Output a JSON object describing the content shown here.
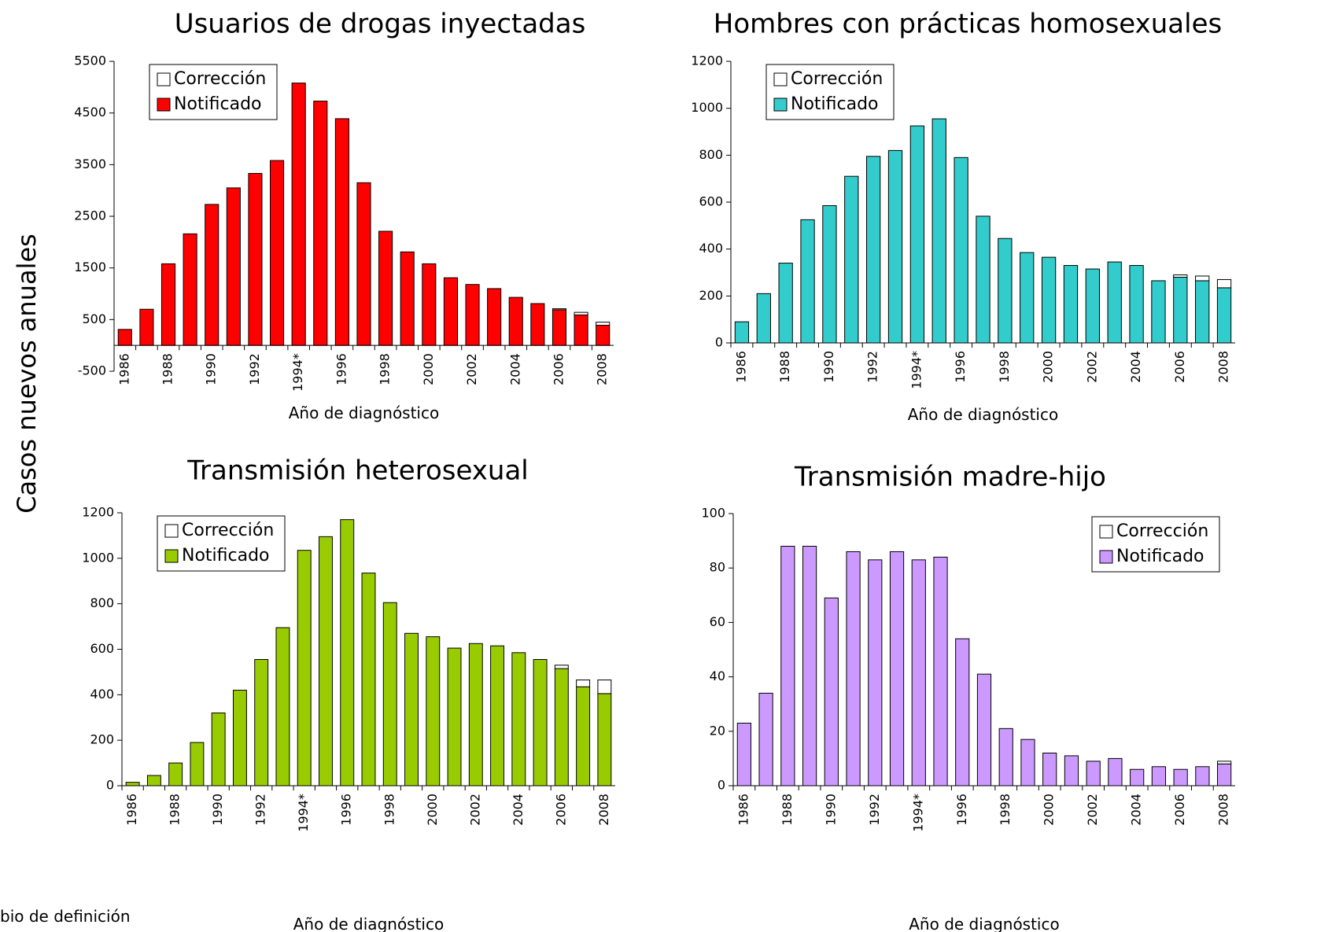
{
  "ylabel": "Casos nuevos anuales",
  "footnote": "bio de definición",
  "chart_data": [
    {
      "type": "bar",
      "title": "Usuarios de drogas inyectadas",
      "xlabel": "Año de diagnóstico",
      "stacked": true,
      "legend": "upper left",
      "categories": [
        "1986",
        null,
        "1988",
        null,
        "1990",
        null,
        "1992",
        null,
        "1994*",
        null,
        "1996",
        null,
        "1998",
        null,
        "2000",
        null,
        "2002",
        null,
        "2004",
        null,
        "2006",
        null,
        "2008"
      ],
      "series": [
        {
          "name": "Corrección",
          "color": "#ffffff",
          "values": [
            0,
            0,
            0,
            0,
            0,
            0,
            0,
            0,
            0,
            0,
            0,
            0,
            0,
            0,
            0,
            0,
            0,
            0,
            0,
            0,
            20,
            50,
            60
          ]
        },
        {
          "name": "Notificado",
          "color": "#ff0000",
          "values": [
            310,
            700,
            1580,
            2160,
            2730,
            3050,
            3330,
            3580,
            5080,
            4730,
            4390,
            3150,
            2210,
            1810,
            1580,
            1310,
            1180,
            1100,
            930,
            810,
            690,
            590,
            390
          ]
        }
      ],
      "ylim": [
        -500,
        5500
      ],
      "yticks": [
        -500,
        500,
        1500,
        2500,
        3500,
        4500,
        5500
      ]
    },
    {
      "type": "bar",
      "title": "Hombres con prácticas homosexuales",
      "xlabel": "Año de diagnóstico",
      "stacked": true,
      "legend": "upper left",
      "categories": [
        "1986",
        null,
        "1988",
        null,
        "1990",
        null,
        "1992",
        null,
        "1994*",
        null,
        "1996",
        null,
        "1998",
        null,
        "2000",
        null,
        "2002",
        null,
        "2004",
        null,
        "2006",
        null,
        "2008"
      ],
      "series": [
        {
          "name": "Corrección",
          "color": "#ffffff",
          "values": [
            0,
            0,
            0,
            0,
            0,
            0,
            0,
            0,
            0,
            0,
            0,
            0,
            0,
            0,
            0,
            0,
            0,
            0,
            0,
            0,
            10,
            20,
            35
          ]
        },
        {
          "name": "Notificado",
          "color": "#33cccc",
          "values": [
            90,
            210,
            340,
            525,
            585,
            710,
            795,
            820,
            925,
            955,
            790,
            540,
            445,
            385,
            365,
            330,
            315,
            345,
            330,
            265,
            280,
            265,
            235
          ]
        }
      ],
      "ylim": [
        0,
        1200
      ],
      "yticks": [
        0,
        200,
        400,
        600,
        800,
        1000,
        1200
      ]
    },
    {
      "type": "bar",
      "title": "Transmisión heterosexual",
      "xlabel": "Año de diagnóstico",
      "stacked": true,
      "legend": "upper left",
      "categories": [
        "1986",
        null,
        "1988",
        null,
        "1990",
        null,
        "1992",
        null,
        "1994*",
        null,
        "1996",
        null,
        "1998",
        null,
        "2000",
        null,
        "2002",
        null,
        "2004",
        null,
        "2006",
        null,
        "2008"
      ],
      "series": [
        {
          "name": "Corrección",
          "color": "#ffffff",
          "values": [
            0,
            0,
            0,
            0,
            0,
            0,
            0,
            0,
            0,
            0,
            0,
            0,
            0,
            0,
            0,
            0,
            0,
            0,
            0,
            0,
            15,
            30,
            60
          ]
        },
        {
          "name": "Notificado",
          "color": "#99cc00",
          "values": [
            15,
            45,
            100,
            190,
            320,
            420,
            555,
            695,
            1035,
            1095,
            1170,
            935,
            805,
            670,
            655,
            605,
            625,
            615,
            585,
            555,
            515,
            435,
            405
          ]
        }
      ],
      "ylim": [
        0,
        1200
      ],
      "yticks": [
        0,
        200,
        400,
        600,
        800,
        1000,
        1200
      ]
    },
    {
      "type": "bar",
      "title": "Transmisión madre-hijo",
      "xlabel": "Año de diagnóstico",
      "stacked": true,
      "legend": "upper right",
      "categories": [
        "1986",
        null,
        "1988",
        null,
        "1990",
        null,
        "1992",
        null,
        "1994*",
        null,
        "1996",
        null,
        "1998",
        null,
        "2000",
        null,
        "2002",
        null,
        "2004",
        null,
        "2006",
        null,
        "2008"
      ],
      "series": [
        {
          "name": "Corrección",
          "color": "#ffffff",
          "values": [
            0,
            0,
            0,
            0,
            0,
            0,
            0,
            0,
            0,
            0,
            0,
            0,
            0,
            0,
            0,
            0,
            0,
            0,
            0,
            0,
            0,
            0,
            1
          ]
        },
        {
          "name": "Notificado",
          "color": "#cc99ff",
          "values": [
            23,
            34,
            88,
            88,
            69,
            86,
            83,
            86,
            83,
            84,
            54,
            41,
            21,
            17,
            12,
            11,
            9,
            10,
            6,
            7,
            6,
            7,
            8
          ]
        }
      ],
      "ylim": [
        0,
        100
      ],
      "yticks": [
        0,
        20,
        40,
        60,
        80,
        100
      ]
    }
  ]
}
